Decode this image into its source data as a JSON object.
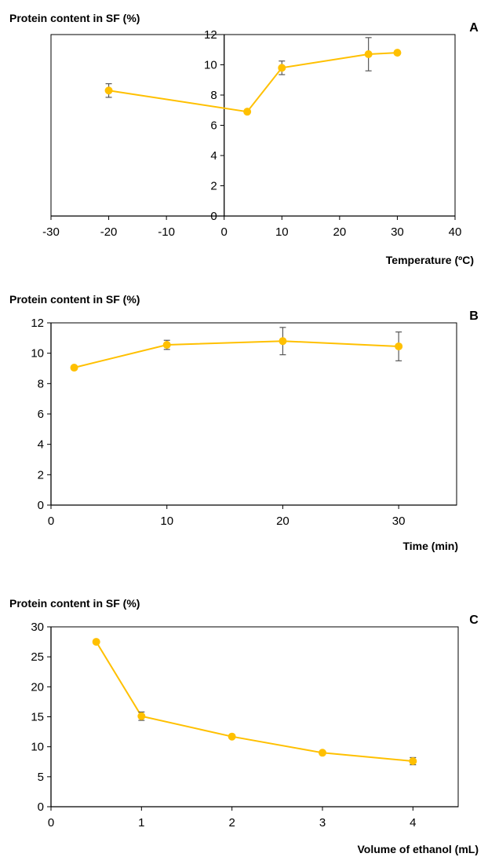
{
  "style": {
    "line_color": "#FFC000",
    "marker_color": "#FFC000",
    "errorbar_color": "#595959",
    "axis_color": "#000000"
  },
  "chart_data": [
    {
      "panel": "A",
      "type": "line",
      "ylabel": "Protein content in SF (%)",
      "xlabel": "Temperature (ºC)",
      "xlim": [
        -30,
        40
      ],
      "ylim": [
        0,
        12
      ],
      "x_ticks": [
        -30,
        -20,
        -10,
        0,
        10,
        20,
        30,
        40
      ],
      "y_ticks": [
        0,
        2,
        4,
        6,
        8,
        10,
        12
      ],
      "y_axis_at_x": 0,
      "x": [
        -20,
        4,
        10,
        25,
        30
      ],
      "y": [
        8.3,
        6.9,
        9.8,
        10.7,
        10.8
      ],
      "error": [
        0.45,
        0.0,
        0.45,
        1.1,
        0.0
      ]
    },
    {
      "panel": "B",
      "type": "line",
      "ylabel": "Protein content in SF (%)",
      "xlabel": "Time (min)",
      "xlim": [
        0,
        35
      ],
      "ylim": [
        0,
        12
      ],
      "x_ticks": [
        0,
        10,
        20,
        30
      ],
      "y_ticks": [
        0,
        2,
        4,
        6,
        8,
        10,
        12
      ],
      "y_axis_at_x": 0,
      "x": [
        2,
        10,
        20,
        30
      ],
      "y": [
        9.05,
        10.55,
        10.8,
        10.45
      ],
      "error": [
        0.0,
        0.3,
        0.9,
        0.95
      ]
    },
    {
      "panel": "C",
      "type": "line",
      "ylabel": "Protein content in SF (%)",
      "xlabel": "Volume of ethanol (mL)",
      "xlim": [
        0,
        4.5
      ],
      "ylim": [
        0,
        30
      ],
      "x_ticks": [
        0,
        1,
        2,
        3,
        4
      ],
      "y_ticks": [
        0,
        5,
        10,
        15,
        20,
        25,
        30
      ],
      "y_axis_at_x": 0,
      "x": [
        0.5,
        1,
        2,
        3,
        4
      ],
      "y": [
        27.5,
        15.1,
        11.7,
        9.0,
        7.6
      ],
      "error": [
        0.0,
        0.7,
        0.0,
        0.0,
        0.6
      ]
    }
  ]
}
